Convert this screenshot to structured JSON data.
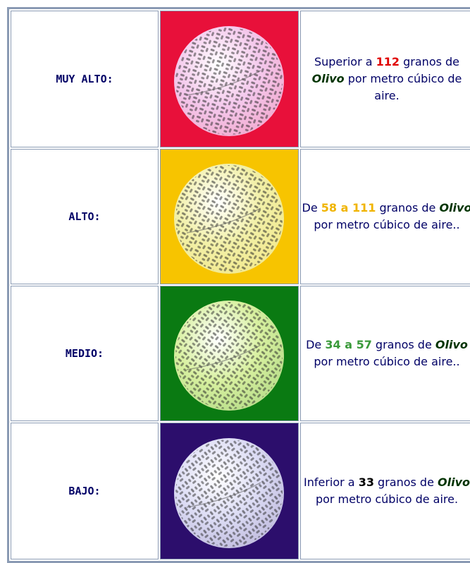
{
  "rows": [
    {
      "label": "MUY ALTO:",
      "image_background": "#e8103a",
      "grain_color": "#f4c8ec",
      "highlight_color": "#e00000",
      "description": {
        "prefix": "Superior a ",
        "highlight": "112",
        "middle": " granos de ",
        "olivo": "Olivo",
        "suffix": " por metro cúbico de aire."
      }
    },
    {
      "label": "ALTO:",
      "image_background": "#f7c400",
      "grain_color": "#f2f0a8",
      "highlight_color": "#f0b400",
      "description": {
        "prefix": "De ",
        "highlight": "58 a 111",
        "middle": " granos de ",
        "olivo": "Olivo",
        "suffix": " por metro cúbico de aire.."
      }
    },
    {
      "label": "MEDIO:",
      "image_background": "#0a7a12",
      "grain_color": "#d8f0a0",
      "highlight_color": "#3a9a3a",
      "description": {
        "prefix": "De ",
        "highlight": "34 a 57",
        "middle": " granos de ",
        "olivo": "Olivo",
        "suffix": " por metro cúbico de aire.."
      }
    },
    {
      "label": "BAJO:",
      "image_background": "#2c0e6c",
      "grain_color": "#dcdcf4",
      "highlight_color": "#000000",
      "description": {
        "prefix": "Inferior a ",
        "highlight": "33",
        "middle": " granos de ",
        "olivo": "Olivo",
        "suffix": " por metro cúbico de aire."
      }
    }
  ]
}
